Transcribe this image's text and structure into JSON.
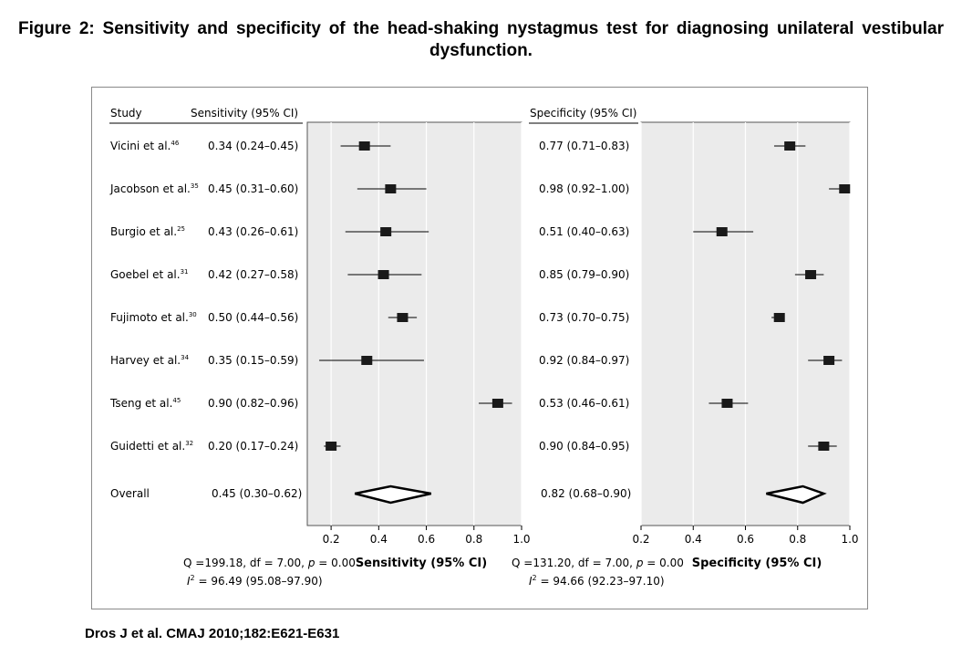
{
  "figure": {
    "title": "Figure 2: Sensitivity and specificity of the head-shaking nystagmus test for diagnosing unilateral vestibular dysfunction.",
    "citation": "Dros J et al. CMAJ 2010;182:E621-E631"
  },
  "chart_data": [
    {
      "type": "forest",
      "panel": "sensitivity",
      "column_headers": {
        "study": "Study",
        "estimate": "Sensitivity (95% CI)"
      },
      "xlim": [
        0.1,
        1.0
      ],
      "xticks": [
        0.2,
        0.4,
        0.6,
        0.8,
        1.0
      ],
      "xtick_labels": [
        "0.2",
        "0.4",
        "0.6",
        "0.8",
        "1.0"
      ],
      "xlabel": "Sensitivity (95% CI)",
      "grid": true,
      "studies": [
        {
          "name": "Vicini et al.",
          "ref": "46",
          "label": "0.34 (0.24–0.45)",
          "value": 0.34,
          "lo": 0.24,
          "hi": 0.45
        },
        {
          "name": "Jacobson et al.",
          "ref": "35",
          "label": "0.45 (0.31–0.60)",
          "value": 0.45,
          "lo": 0.31,
          "hi": 0.6
        },
        {
          "name": "Burgio et al.",
          "ref": "25",
          "label": "0.43 (0.26–0.61)",
          "value": 0.43,
          "lo": 0.26,
          "hi": 0.61
        },
        {
          "name": "Goebel et al.",
          "ref": "31",
          "label": "0.42 (0.27–0.58)",
          "value": 0.42,
          "lo": 0.27,
          "hi": 0.58
        },
        {
          "name": "Fujimoto et al.",
          "ref": "30",
          "label": "0.50 (0.44–0.56)",
          "value": 0.5,
          "lo": 0.44,
          "hi": 0.56
        },
        {
          "name": "Harvey et al.",
          "ref": "34",
          "label": "0.35 (0.15–0.59)",
          "value": 0.35,
          "lo": 0.15,
          "hi": 0.59
        },
        {
          "name": "Tseng et al.",
          "ref": "45",
          "label": "0.90 (0.82–0.96)",
          "value": 0.9,
          "lo": 0.82,
          "hi": 0.96
        },
        {
          "name": "Guidetti et al.",
          "ref": "32",
          "label": "0.20 (0.17–0.24)",
          "value": 0.2,
          "lo": 0.17,
          "hi": 0.24
        }
      ],
      "overall": {
        "name": "Overall",
        "label": "0.45 (0.30–0.62)",
        "value": 0.45,
        "lo": 0.3,
        "hi": 0.62
      },
      "stats": {
        "q_prefix": "Q =199.18, df = 7.00, ",
        "p_symbol": "p",
        "p_value": " =  0.00",
        "i_symbol": "I",
        "i_sup": "2",
        "i_value": " = 96.49 (95.08–97.90)"
      }
    },
    {
      "type": "forest",
      "panel": "specificity",
      "column_headers": {
        "estimate": "Specificity (95% CI)"
      },
      "xlim": [
        0.2,
        1.0
      ],
      "xticks": [
        0.2,
        0.4,
        0.6,
        0.8,
        1.0
      ],
      "xtick_labels": [
        "0.2",
        "0.4",
        "0.6",
        "0.8",
        "1.0"
      ],
      "xlabel": "Specificity (95% CI)",
      "grid": true,
      "studies": [
        {
          "label": "0.77 (0.71–0.83)",
          "value": 0.77,
          "lo": 0.71,
          "hi": 0.83
        },
        {
          "label": "0.98 (0.92–1.00)",
          "value": 0.98,
          "lo": 0.92,
          "hi": 1.0
        },
        {
          "label": "0.51 (0.40–0.63)",
          "value": 0.51,
          "lo": 0.4,
          "hi": 0.63
        },
        {
          "label": "0.85 (0.79–0.90)",
          "value": 0.85,
          "lo": 0.79,
          "hi": 0.9
        },
        {
          "label": "0.73 (0.70–0.75)",
          "value": 0.73,
          "lo": 0.7,
          "hi": 0.75
        },
        {
          "label": "0.92 (0.84–0.97)",
          "value": 0.92,
          "lo": 0.84,
          "hi": 0.97
        },
        {
          "label": "0.53 (0.46–0.61)",
          "value": 0.53,
          "lo": 0.46,
          "hi": 0.61
        },
        {
          "label": "0.90 (0.84–0.95)",
          "value": 0.9,
          "lo": 0.84,
          "hi": 0.95
        }
      ],
      "overall": {
        "label": "0.82 (0.68–0.90)",
        "value": 0.82,
        "lo": 0.68,
        "hi": 0.9
      },
      "stats": {
        "q_prefix": "Q =131.20, df = 7.00, ",
        "p_symbol": "p",
        "p_value": " =  0.00",
        "i_symbol": "I",
        "i_sup": "2",
        "i_value": " = 94.66 (92.23–97.10)"
      }
    }
  ]
}
